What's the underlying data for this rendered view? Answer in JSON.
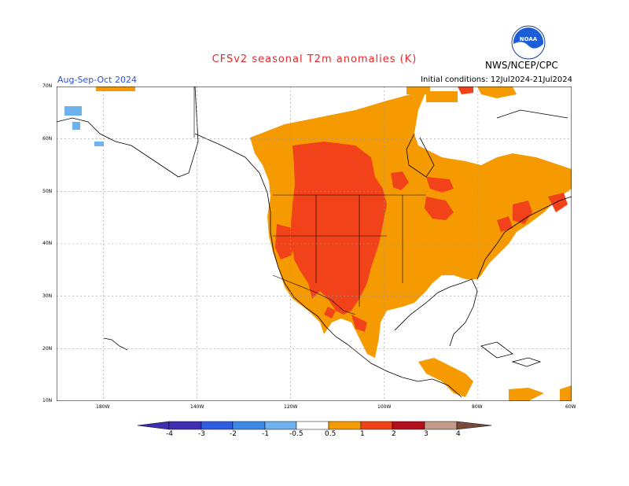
{
  "header": {
    "title": "CFSv2  seasonal  T2m  anomalies  (K)",
    "org": "NWS/NCEP/CPC",
    "period": "Aug-Sep-Oct 2024",
    "initial_conditions": "Initial conditions: 12Jul2024-21Jul2024",
    "logo_text": "NOAA"
  },
  "map": {
    "lat_labels": [
      "70N",
      "60N",
      "50N",
      "40N",
      "30N",
      "20N",
      "10N"
    ],
    "lon_labels": [
      "180W",
      "140W",
      "120W",
      "100W",
      "80W",
      "60W"
    ]
  },
  "colorbar": {
    "labels": [
      "-4",
      "-3",
      "-2",
      "-1",
      "-0.5",
      "0.5",
      "1",
      "2",
      "3",
      "4"
    ],
    "colors": [
      "#3d2fb0",
      "#2f5ce0",
      "#3c8ae6",
      "#6db2ef",
      "#ffffff",
      "#f59a00",
      "#f2421a",
      "#b3101e",
      "#c49a8a",
      "#7a4a3a"
    ]
  }
}
